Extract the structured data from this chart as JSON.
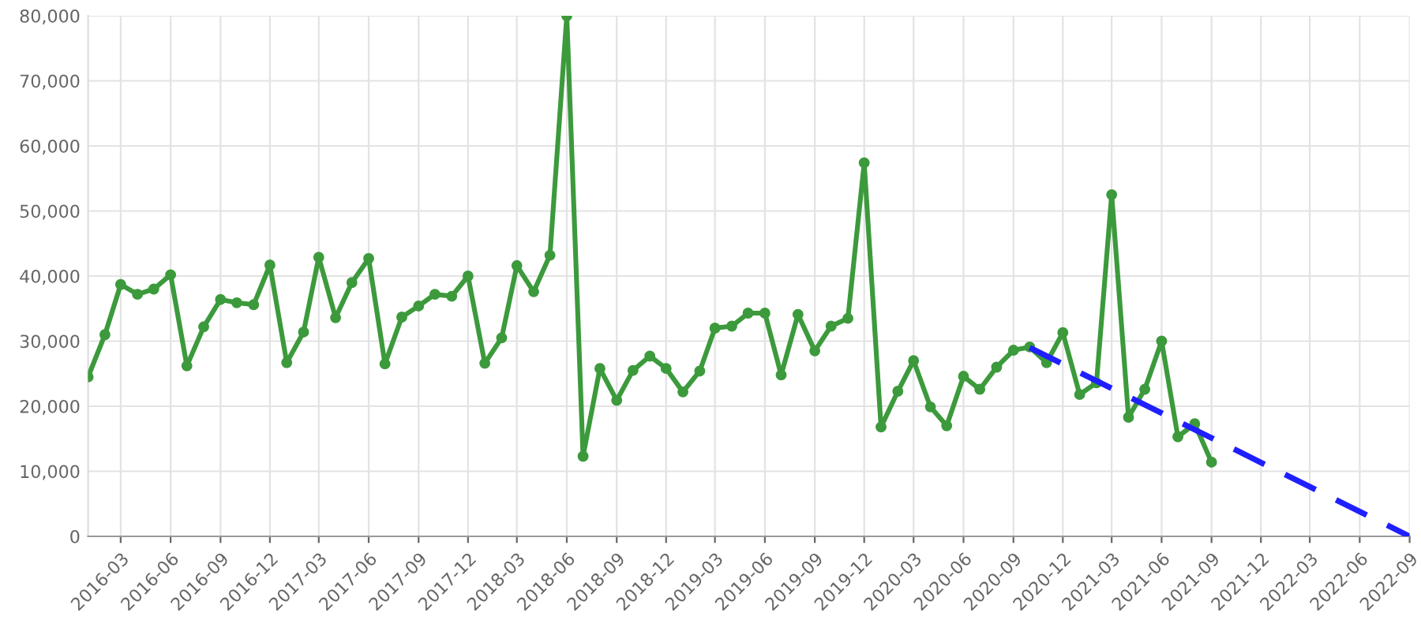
{
  "chart_data": {
    "type": "line",
    "x": [
      "2016-01",
      "2016-02",
      "2016-03",
      "2016-04",
      "2016-05",
      "2016-06",
      "2016-07",
      "2016-08",
      "2016-09",
      "2016-10",
      "2016-11",
      "2016-12",
      "2017-01",
      "2017-02",
      "2017-03",
      "2017-04",
      "2017-05",
      "2017-06",
      "2017-07",
      "2017-08",
      "2017-09",
      "2017-10",
      "2017-11",
      "2017-12",
      "2018-01",
      "2018-02",
      "2018-03",
      "2018-04",
      "2018-05",
      "2018-06",
      "2018-07",
      "2018-08",
      "2018-09",
      "2018-10",
      "2018-11",
      "2018-12",
      "2019-01",
      "2019-02",
      "2019-03",
      "2019-04",
      "2019-05",
      "2019-06",
      "2019-07",
      "2019-08",
      "2019-09",
      "2019-10",
      "2019-11",
      "2019-12",
      "2020-01",
      "2020-02",
      "2020-03",
      "2020-04",
      "2020-05",
      "2020-06",
      "2020-07",
      "2020-08",
      "2020-09",
      "2020-10",
      "2020-11",
      "2020-12",
      "2021-01",
      "2021-02",
      "2021-03",
      "2021-04",
      "2021-05",
      "2021-06",
      "2021-07",
      "2021-08",
      "2021-09"
    ],
    "series": [
      {
        "color": "#3c9a3c",
        "marker": "circle",
        "line_style": "solid",
        "values": [
          24500,
          31000,
          38700,
          37200,
          38000,
          40200,
          26200,
          32200,
          36400,
          35900,
          35600,
          41700,
          26700,
          31400,
          42900,
          33600,
          39000,
          42700,
          26500,
          33700,
          35400,
          37200,
          36900,
          40000,
          26600,
          30500,
          41600,
          37600,
          43200,
          80000,
          12300,
          25800,
          20900,
          25500,
          27700,
          25800,
          22200,
          25400,
          32000,
          32300,
          34300,
          34300,
          24800,
          34100,
          28500,
          32300,
          33500,
          57400,
          16800,
          22300,
          27000,
          19900,
          17000,
          24600,
          22600,
          26000,
          28600,
          29100,
          26700,
          31300,
          21800,
          23600,
          52500,
          18300,
          22600,
          30000,
          15300,
          17300,
          11400
        ]
      },
      {
        "type": "line",
        "color": "#1f1fff",
        "marker": "none",
        "line_style": "dashed",
        "x": [
          "2020-10",
          "2022-09"
        ],
        "values": [
          29000,
          0
        ]
      }
    ],
    "xlim": [
      "2016-01",
      "2022-09"
    ],
    "xticks": [
      "2016-03",
      "2016-06",
      "2016-09",
      "2016-12",
      "2017-03",
      "2017-06",
      "2017-09",
      "2017-12",
      "2018-03",
      "2018-06",
      "2018-09",
      "2018-12",
      "2019-03",
      "2019-06",
      "2019-09",
      "2019-12",
      "2020-03",
      "2020-06",
      "2020-09",
      "2020-12",
      "2021-03",
      "2021-06",
      "2021-09",
      "2021-12",
      "2022-03",
      "2022-06",
      "2022-09"
    ],
    "ylim": [
      0,
      80000
    ],
    "yticks": [
      {
        "value": 0,
        "label": "0"
      },
      {
        "value": 10000,
        "label": "10,000"
      },
      {
        "value": 20000,
        "label": "20,000"
      },
      {
        "value": 30000,
        "label": "30,000"
      },
      {
        "value": 40000,
        "label": "40,000"
      },
      {
        "value": 50000,
        "label": "50,000"
      },
      {
        "value": 60000,
        "label": "60,000"
      },
      {
        "value": 70000,
        "label": "70,000"
      },
      {
        "value": 80000,
        "label": "80,000"
      }
    ],
    "grid": true
  }
}
